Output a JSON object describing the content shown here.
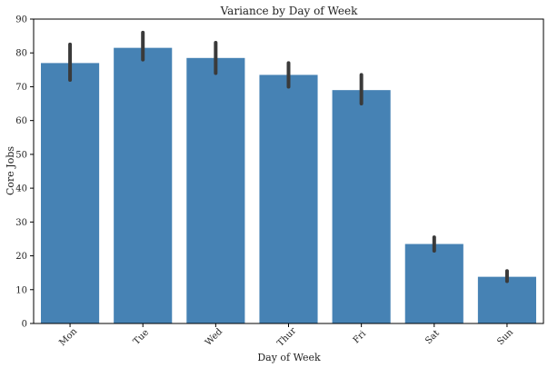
{
  "chart_data": {
    "type": "bar",
    "title": "Variance by Day of Week",
    "xlabel": "Day of Week",
    "ylabel": "Core Jobs",
    "categories": [
      "Mon",
      "Tue",
      "Wed",
      "Thur",
      "Fri",
      "Sat",
      "Sun"
    ],
    "values": [
      77,
      81.5,
      78.5,
      73.5,
      69,
      23.5,
      13.8
    ],
    "error_low": [
      72,
      78,
      74,
      70,
      65,
      21.5,
      12.5
    ],
    "error_high": [
      82.5,
      86,
      83,
      77,
      73.5,
      25.5,
      15.5
    ],
    "ylim": [
      0,
      90
    ],
    "yticks": [
      0,
      10,
      20,
      30,
      40,
      50,
      60,
      70,
      80,
      90
    ],
    "grid": false,
    "bar_color": "#4682B4",
    "error_color": "#3a3a3a"
  }
}
